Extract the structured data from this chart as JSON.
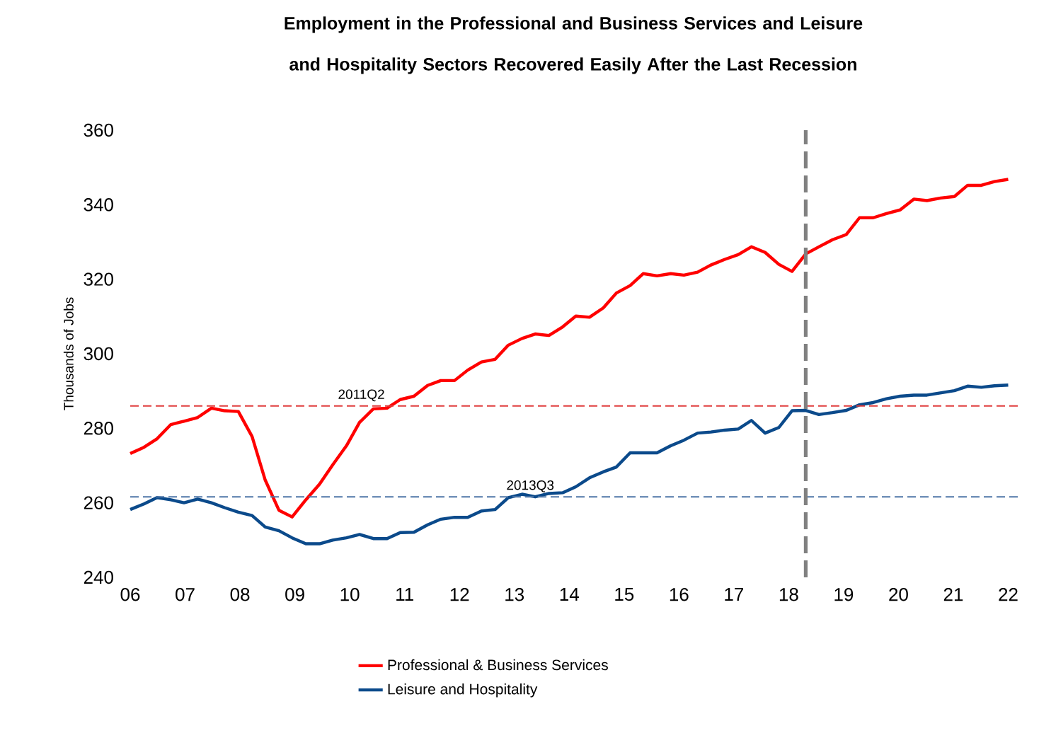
{
  "chart_data": {
    "type": "line",
    "title": "Employment in the Professional and Business Services and Leisure and Hospitality Sectors Recovered Easily After the Last Recession",
    "ylabel": "Thousands of Jobs",
    "x": [
      6.0,
      6.25,
      6.49,
      6.74,
      6.98,
      7.23,
      7.48,
      7.72,
      7.97,
      8.22,
      8.46,
      8.71,
      8.95,
      9.2,
      9.45,
      9.69,
      9.94,
      10.18,
      10.43,
      10.68,
      10.92,
      11.17,
      11.42,
      11.66,
      11.91,
      12.15,
      12.4,
      12.65,
      12.89,
      13.14,
      13.38,
      13.63,
      13.88,
      14.12,
      14.37,
      14.62,
      14.86,
      15.11,
      15.35,
      15.6,
      15.85,
      16.09,
      16.34,
      16.58,
      16.83,
      17.08,
      17.32,
      17.57,
      17.82,
      18.06,
      18.31,
      18.55,
      18.8,
      19.05,
      19.29,
      19.54,
      19.78,
      20.03,
      20.28,
      20.52,
      20.77,
      21.02,
      21.26,
      21.51,
      21.75,
      22.0
    ],
    "series": [
      {
        "name": "Professional & Business Services",
        "color": "#ff0000",
        "values": [
          273.2,
          274.9,
          277.2,
          281,
          281.9,
          282.9,
          285.4,
          284.7,
          284.5,
          277.8,
          266.1,
          258,
          256.2,
          260.8,
          265,
          270.2,
          275.3,
          281.6,
          285.2,
          285.4,
          287.7,
          288.6,
          291.5,
          292.8,
          292.8,
          295.6,
          297.8,
          298.5,
          302.3,
          304.1,
          305.3,
          304.9,
          307.2,
          310.1,
          309.8,
          312.3,
          316.3,
          318.3,
          321.5,
          320.9,
          321.5,
          321.1,
          321.9,
          323.8,
          325.3,
          326.6,
          328.7,
          327.2,
          324,
          322.1,
          326.8,
          328.7,
          330.6,
          332,
          336.5,
          336.5,
          337.6,
          338.6,
          341.5,
          341.1,
          341.8,
          342.2,
          345.2,
          345.2,
          346.2,
          346.8
        ]
      },
      {
        "name": "Leisure and Hospitality",
        "color": "#0b4a8b",
        "values": [
          258.2,
          259.7,
          261.4,
          260.8,
          260,
          261,
          260,
          258.7,
          257.5,
          256.6,
          253.5,
          252.5,
          250.6,
          249,
          249,
          250,
          250.6,
          251.5,
          250.4,
          250.4,
          252,
          252.1,
          254.1,
          255.6,
          256.1,
          256.1,
          257.8,
          258.2,
          261.4,
          262.3,
          261.6,
          262.5,
          262.7,
          264.3,
          266.7,
          268.3,
          269.6,
          273.4,
          273.4,
          273.4,
          275.3,
          276.8,
          278.7,
          279,
          279.5,
          279.8,
          282.1,
          278.7,
          280.2,
          284.7,
          284.8,
          283.7,
          284.2,
          284.8,
          286.3,
          286.9,
          287.9,
          288.6,
          288.9,
          288.9,
          289.5,
          290.1,
          291.3,
          291,
          291.4,
          291.6
        ]
      }
    ],
    "xlim": [
      6,
      22.2
    ],
    "ylim": [
      240,
      360
    ],
    "xticks": [
      {
        "value": 6,
        "label": "06"
      },
      {
        "value": 7,
        "label": "07"
      },
      {
        "value": 8,
        "label": "08"
      },
      {
        "value": 9,
        "label": "09"
      },
      {
        "value": 10,
        "label": "10"
      },
      {
        "value": 11,
        "label": "11"
      },
      {
        "value": 12,
        "label": "12"
      },
      {
        "value": 13,
        "label": "13"
      },
      {
        "value": 14,
        "label": "14"
      },
      {
        "value": 15,
        "label": "15"
      },
      {
        "value": 16,
        "label": "16"
      },
      {
        "value": 17,
        "label": "17"
      },
      {
        "value": 18,
        "label": "18"
      },
      {
        "value": 19,
        "label": "19"
      },
      {
        "value": 20,
        "label": "20"
      },
      {
        "value": 21,
        "label": "21"
      },
      {
        "value": 22,
        "label": "22"
      }
    ],
    "yticks": [
      240,
      260,
      280,
      300,
      320,
      340,
      360
    ],
    "ref_lines": [
      {
        "axis": "y",
        "value": 286,
        "label": "2011Q2",
        "color": "#e03c3c",
        "line_style": "dashed"
      },
      {
        "axis": "y",
        "value": 261.6,
        "label": "2013Q3",
        "color": "#4f77a8",
        "line_style": "dashed"
      },
      {
        "axis": "x",
        "value": 18.31,
        "color": "#808080",
        "line_style": "dashed"
      }
    ],
    "legend": "bottom",
    "grid": false,
    "line_style": "solid",
    "marker": "none"
  }
}
